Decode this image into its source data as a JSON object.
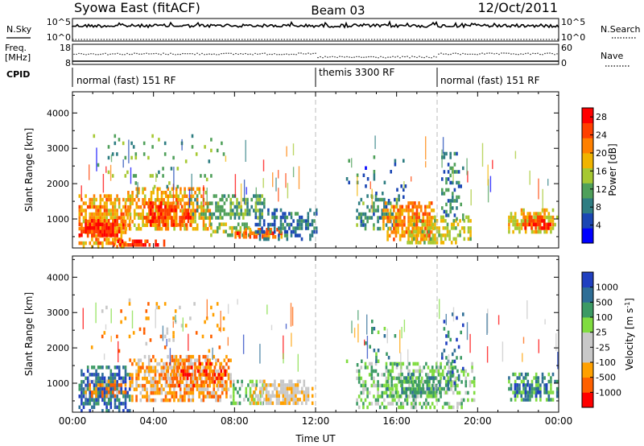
{
  "header": {
    "title": "Syowa East (fitACF)",
    "beam": "Beam 03",
    "date": "12/Oct/2011"
  },
  "top_panels": {
    "nsky_label": "N.Sky",
    "nsky_ticks": [
      "10^5",
      "10^0"
    ],
    "nsearch_label": "N.Search",
    "nsearch_ticks": [
      "10^5",
      "10^0"
    ],
    "freq_label": "Freq.",
    "freq_unit": "[MHz]",
    "freq_ticks": [
      "18",
      "8"
    ],
    "nave_label": "Nave",
    "nave_ticks": [
      "60",
      "0"
    ],
    "cpid_label": "CPID",
    "cpid_segments": [
      {
        "label": "normal (fast) 151 RF",
        "start_hour": 0,
        "end_hour": 12
      },
      {
        "label": "themis 3300 RF",
        "start_hour": 12,
        "end_hour": 18
      },
      {
        "label": "normal (fast) 151 RF",
        "start_hour": 18,
        "end_hour": 24
      }
    ]
  },
  "chart_data": [
    {
      "type": "heatmap",
      "quantity": "Power",
      "ylabel": "Slant Range [km]",
      "xlabel": "Time UT",
      "x_ticks": [
        "00:00",
        "04:00",
        "08:00",
        "12:00",
        "16:00",
        "20:00",
        "00:00"
      ],
      "x_tick_hours": [
        0,
        4,
        8,
        12,
        16,
        20,
        24
      ],
      "xlim_hours": [
        0,
        24
      ],
      "ylim": [
        180,
        4600
      ],
      "y_ticks": [
        1000,
        2000,
        3000,
        4000
      ],
      "y_tick_labels": [
        "1000",
        "2000",
        "3000",
        "4000"
      ],
      "colorbar_label": "Power [dB]",
      "colorbar_ticks": [
        "4",
        "8",
        "12",
        "16",
        "20",
        "24",
        "28"
      ],
      "colorbar_range": [
        0,
        30
      ],
      "colors": [
        "#0000ff",
        "#1a46b4",
        "#2e7d82",
        "#4fa05a",
        "#a6c832",
        "#f0b400",
        "#ff8000",
        "#ff4000",
        "#ff0000"
      ],
      "blobs": [
        {
          "t0": 0.3,
          "t1": 2.8,
          "r0": 250,
          "r1": 1700,
          "v": 21,
          "d": 0.9
        },
        {
          "t0": 0.3,
          "t1": 2.5,
          "r0": 500,
          "r1": 1000,
          "v": 28,
          "d": 0.95
        },
        {
          "t0": 2.5,
          "t1": 6.8,
          "r0": 700,
          "r1": 1900,
          "v": 20,
          "d": 0.75
        },
        {
          "t0": 3.5,
          "t1": 5.8,
          "r0": 800,
          "r1": 1500,
          "v": 26,
          "d": 0.85
        },
        {
          "t0": 2.0,
          "t1": 4.5,
          "r0": 250,
          "r1": 420,
          "v": 28,
          "d": 0.9
        },
        {
          "t0": 5.8,
          "t1": 9.5,
          "r0": 1000,
          "r1": 1700,
          "v": 11,
          "d": 0.6
        },
        {
          "t0": 6.8,
          "t1": 8.8,
          "r0": 500,
          "r1": 900,
          "v": 14,
          "d": 0.6
        },
        {
          "t0": 8.0,
          "t1": 10.4,
          "r0": 450,
          "r1": 750,
          "v": 24,
          "d": 0.85
        },
        {
          "t0": 9.0,
          "t1": 12.0,
          "r0": 450,
          "r1": 1300,
          "v": 6,
          "d": 0.6
        },
        {
          "t0": 0.6,
          "t1": 7.5,
          "r0": 1900,
          "r1": 3400,
          "v": 12,
          "d": 0.07
        },
        {
          "t0": 14.0,
          "t1": 16.2,
          "r0": 700,
          "r1": 1700,
          "v": 9,
          "d": 0.55
        },
        {
          "t0": 15.3,
          "t1": 17.8,
          "r0": 400,
          "r1": 1500,
          "v": 22,
          "d": 0.8
        },
        {
          "t0": 16.5,
          "t1": 19.6,
          "r0": 300,
          "r1": 1100,
          "v": 16,
          "d": 0.6
        },
        {
          "t0": 18.2,
          "t1": 19.3,
          "r0": 1000,
          "r1": 3000,
          "v": 8,
          "d": 0.25
        },
        {
          "t0": 13.5,
          "t1": 16.5,
          "r0": 1500,
          "r1": 2800,
          "v": 6,
          "d": 0.1
        },
        {
          "t0": 21.5,
          "t1": 23.9,
          "r0": 600,
          "r1": 1300,
          "v": 18,
          "d": 0.75
        },
        {
          "t0": 22.2,
          "t1": 23.6,
          "r0": 700,
          "r1": 1100,
          "v": 27,
          "d": 0.9
        }
      ]
    },
    {
      "type": "heatmap",
      "quantity": "Velocity",
      "ylabel": "Slant Range [km]",
      "xlabel": "Time UT",
      "x_ticks": [
        "00:00",
        "04:00",
        "08:00",
        "12:00",
        "16:00",
        "20:00",
        "00:00"
      ],
      "x_tick_hours": [
        0,
        4,
        8,
        12,
        16,
        20,
        24
      ],
      "xlim_hours": [
        0,
        24
      ],
      "ylim": [
        180,
        4600
      ],
      "y_ticks": [
        1000,
        2000,
        3000,
        4000
      ],
      "y_tick_labels": [
        "1000",
        "2000",
        "3000",
        "4000"
      ],
      "colorbar_label": "Velocity [m s^-1]",
      "colorbar_ticks": [
        "1000",
        "500",
        "100",
        "25",
        "-25",
        "-100",
        "-500",
        "-1000"
      ],
      "colors": [
        "#ff0000",
        "#ff6000",
        "#ffa000",
        "#c8c8c8",
        "#c8c8c8",
        "#80dc40",
        "#3c9a64",
        "#2e6e96",
        "#2040c0"
      ],
      "blobs": [
        {
          "t0": 0.3,
          "t1": 2.8,
          "r0": 250,
          "r1": 1500,
          "v": 7,
          "d": 0.85
        },
        {
          "t0": 0.5,
          "t1": 2.6,
          "r0": 600,
          "r1": 1100,
          "v": 2,
          "d": 0.5
        },
        {
          "t0": 2.8,
          "t1": 7.8,
          "r0": 500,
          "r1": 1800,
          "v": 2,
          "d": 0.8
        },
        {
          "t0": 4.5,
          "t1": 7.5,
          "r0": 900,
          "r1": 1600,
          "v": 1,
          "d": 0.5
        },
        {
          "t0": 7.8,
          "t1": 9.5,
          "r0": 400,
          "r1": 1200,
          "v": 5,
          "d": 0.5
        },
        {
          "t0": 8.8,
          "t1": 11.8,
          "r0": 400,
          "r1": 1100,
          "v": 3,
          "d": 0.8
        },
        {
          "t0": 0.6,
          "t1": 7.5,
          "r0": 1900,
          "r1": 3400,
          "v": 2,
          "d": 0.06
        },
        {
          "t0": 14.0,
          "t1": 19.8,
          "r0": 300,
          "r1": 1600,
          "v": 5,
          "d": 0.6
        },
        {
          "t0": 15.5,
          "t1": 18.5,
          "r0": 600,
          "r1": 1300,
          "v": 6,
          "d": 0.6
        },
        {
          "t0": 18.2,
          "t1": 19.3,
          "r0": 1000,
          "r1": 3000,
          "v": 7,
          "d": 0.25
        },
        {
          "t0": 13.5,
          "t1": 16.0,
          "r0": 1500,
          "r1": 2800,
          "v": 6,
          "d": 0.08
        },
        {
          "t0": 21.5,
          "t1": 23.9,
          "r0": 500,
          "r1": 1300,
          "v": 6,
          "d": 0.75
        },
        {
          "t0": 21.8,
          "t1": 23.4,
          "r0": 600,
          "r1": 1000,
          "v": 8,
          "d": 0.4
        }
      ]
    }
  ]
}
